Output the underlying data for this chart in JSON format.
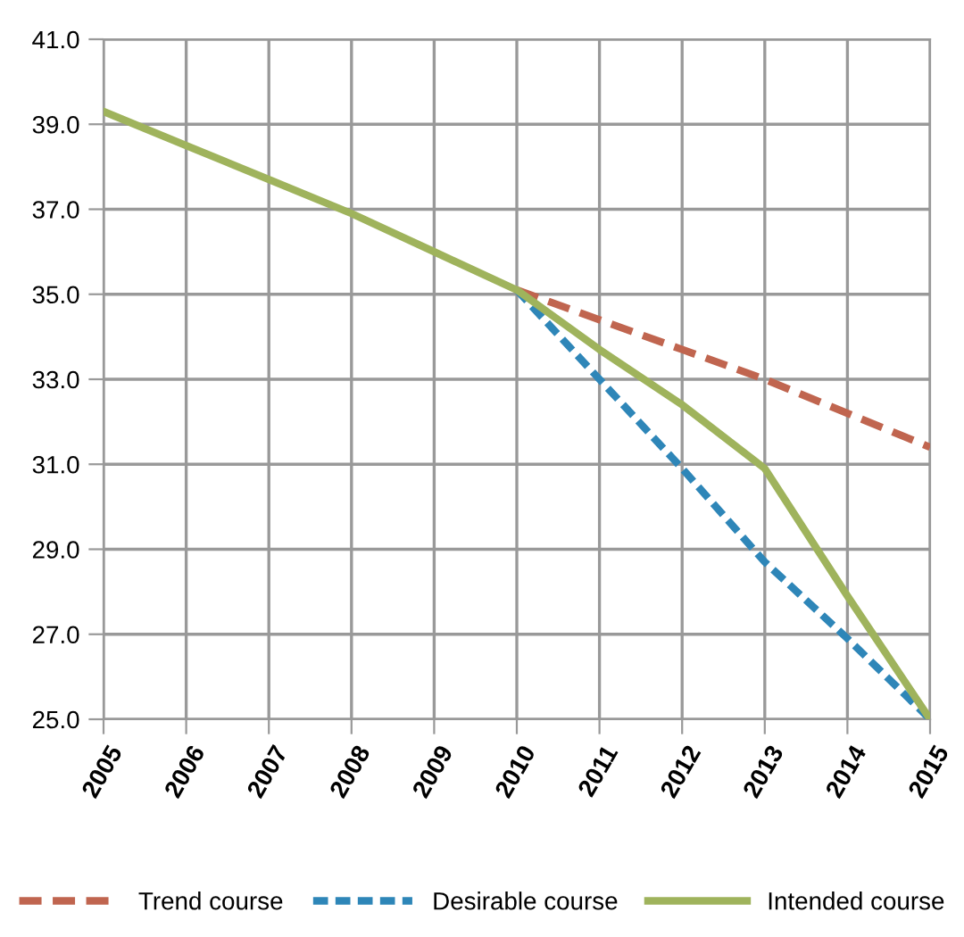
{
  "chart_data": {
    "type": "line",
    "categories": [
      "2005",
      "2006",
      "2007",
      "2008",
      "2009",
      "2010",
      "2011",
      "2012",
      "2013",
      "2014",
      "2015"
    ],
    "series": [
      {
        "name": "Trend course",
        "color": "#c0654f",
        "line_style": "dashed",
        "values": [
          null,
          null,
          null,
          null,
          null,
          35.1,
          34.4,
          33.7,
          33.0,
          32.2,
          31.4
        ]
      },
      {
        "name": "Desirable course",
        "color": "#2e86b8",
        "line_style": "dotted",
        "values": [
          null,
          null,
          null,
          null,
          null,
          35.1,
          33.0,
          30.9,
          28.7,
          26.9,
          25.0
        ]
      },
      {
        "name": "Intended course",
        "color": "#9fb35c",
        "line_style": "solid",
        "values": [
          39.3,
          38.5,
          37.7,
          36.9,
          36.0,
          35.1,
          33.7,
          32.4,
          30.9,
          27.9,
          25.0
        ]
      }
    ],
    "ylim": [
      25,
      41
    ],
    "yticks": [
      {
        "value": 25,
        "label": "25.0"
      },
      {
        "value": 27,
        "label": "27.0"
      },
      {
        "value": 29,
        "label": "29.0"
      },
      {
        "value": 31,
        "label": "31.0"
      },
      {
        "value": 33,
        "label": "33.0"
      },
      {
        "value": 35,
        "label": "35.0"
      },
      {
        "value": 37,
        "label": "37.0"
      },
      {
        "value": 39,
        "label": "39.0"
      },
      {
        "value": 41,
        "label": "41.0"
      }
    ],
    "grid": true,
    "legend": "bottom"
  }
}
